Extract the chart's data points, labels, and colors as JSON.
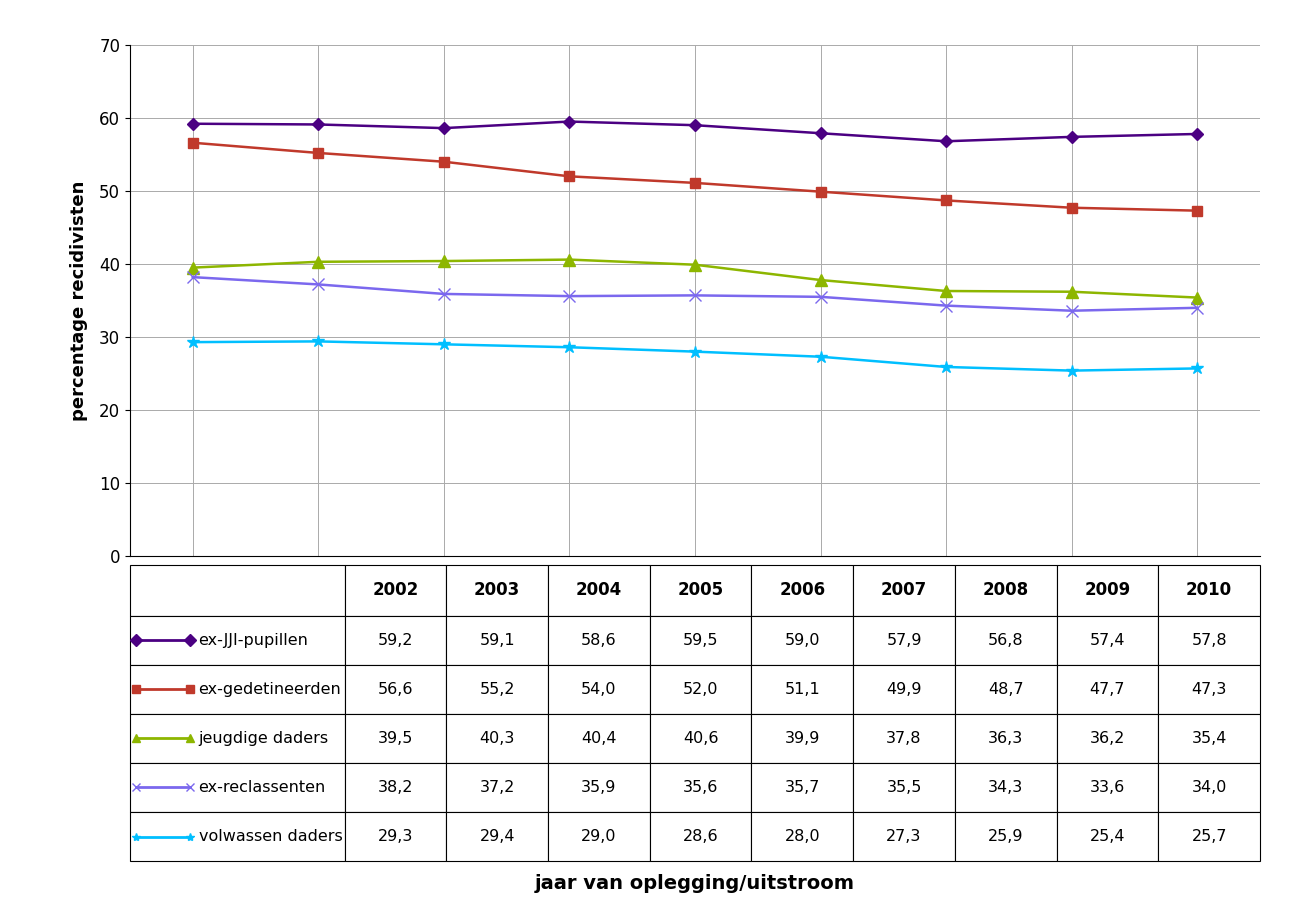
{
  "years": [
    2002,
    2003,
    2004,
    2005,
    2006,
    2007,
    2008,
    2009,
    2010
  ],
  "series": [
    {
      "label": "ex-JJI-pupillen",
      "values": [
        59.2,
        59.1,
        58.6,
        59.5,
        59.0,
        57.9,
        56.8,
        57.4,
        57.8
      ],
      "color": "#4B0082",
      "marker": "D",
      "markersize": 6,
      "linewidth": 1.8
    },
    {
      "label": "ex-gedetineerden",
      "values": [
        56.6,
        55.2,
        54.0,
        52.0,
        51.1,
        49.9,
        48.7,
        47.7,
        47.3
      ],
      "color": "#C0392B",
      "marker": "s",
      "markersize": 7,
      "linewidth": 1.8
    },
    {
      "label": "jeugdige daders",
      "values": [
        39.5,
        40.3,
        40.4,
        40.6,
        39.9,
        37.8,
        36.3,
        36.2,
        35.4
      ],
      "color": "#8DB600",
      "marker": "^",
      "markersize": 8,
      "linewidth": 1.8
    },
    {
      "label": "ex-reclassenten",
      "values": [
        38.2,
        37.2,
        35.9,
        35.6,
        35.7,
        35.5,
        34.3,
        33.6,
        34.0
      ],
      "color": "#7B68EE",
      "marker": "x",
      "markersize": 8,
      "linewidth": 1.8
    },
    {
      "label": "volwassen daders",
      "values": [
        29.3,
        29.4,
        29.0,
        28.6,
        28.0,
        27.3,
        25.9,
        25.4,
        25.7
      ],
      "color": "#00BFFF",
      "marker": "*",
      "markersize": 9,
      "linewidth": 1.8
    }
  ],
  "ylabel": "percentage recidivisten",
  "xlabel": "jaar van oplegging/uitstroom",
  "ylim": [
    0,
    70
  ],
  "yticks": [
    0,
    10,
    20,
    30,
    40,
    50,
    60,
    70
  ],
  "background_color": "#ffffff",
  "grid_color": "#aaaaaa",
  "table_header_years": [
    "2002",
    "2003",
    "2004",
    "2005",
    "2006",
    "2007",
    "2008",
    "2009",
    "2010"
  ],
  "legend_labels": [
    "ex-JJI-pupillen",
    "ex-gedetineerden",
    "jeugdige daders",
    "ex-reclassenten",
    "volwassen daders"
  ]
}
